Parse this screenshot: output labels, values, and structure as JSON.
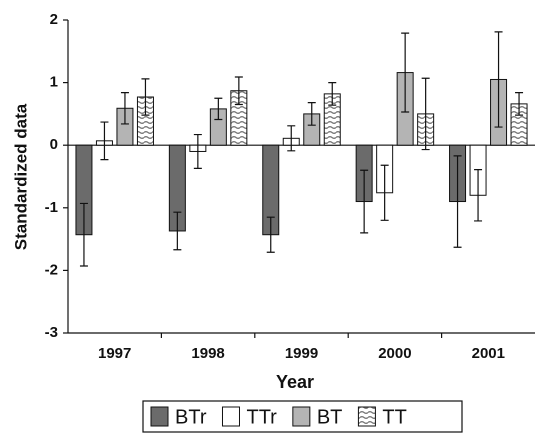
{
  "chart_data": {
    "type": "bar",
    "x_label": "Year",
    "y_label": "Standardized data",
    "categories": [
      "1997",
      "1998",
      "1999",
      "2000",
      "2001"
    ],
    "series": [
      {
        "name": "BTr",
        "color": "#6b6b6b",
        "values": [
          -1.43,
          -1.37,
          -1.43,
          -0.9,
          -0.9
        ],
        "errors": [
          0.5,
          0.3,
          0.28,
          0.5,
          0.73
        ]
      },
      {
        "name": "TTr",
        "color": "#ffffff",
        "values": [
          0.07,
          -0.1,
          0.11,
          -0.76,
          -0.8
        ],
        "errors": [
          0.3,
          0.27,
          0.2,
          0.44,
          0.41
        ]
      },
      {
        "name": "BT",
        "color": "#b4b4b4",
        "values": [
          0.59,
          0.58,
          0.5,
          1.16,
          1.05
        ],
        "errors": [
          0.25,
          0.17,
          0.18,
          0.63,
          0.76
        ]
      },
      {
        "name": "TT",
        "color": "#ffffff",
        "hatch": true,
        "values": [
          0.77,
          0.87,
          0.82,
          0.5,
          0.66
        ],
        "errors": [
          0.29,
          0.22,
          0.18,
          0.57,
          0.18
        ]
      }
    ],
    "ylim": [
      -3,
      2
    ],
    "yticks": [
      2,
      1,
      0,
      -1,
      -2,
      -3
    ],
    "legend": "bottom"
  }
}
